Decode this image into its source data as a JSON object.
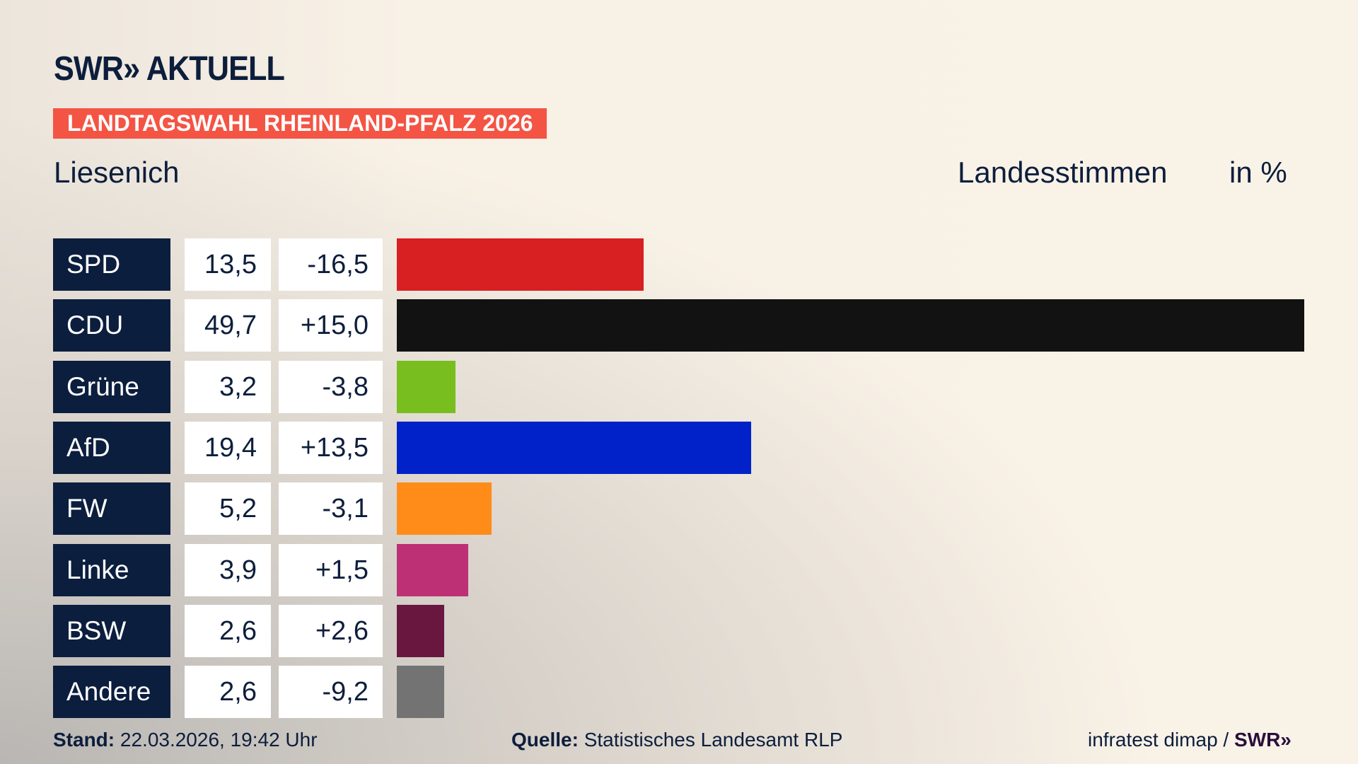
{
  "header": {
    "logo": "SWR» AKTUELL",
    "banner": "LANDTAGSWAHL RHEINLAND-PFALZ 2026",
    "place": "Liesenich",
    "vote_type": "Landesstimmen",
    "unit": "in %"
  },
  "chart_data": {
    "type": "bar",
    "orientation": "horizontal",
    "categories": [
      "SPD",
      "CDU",
      "Grüne",
      "AfD",
      "FW",
      "Linke",
      "BSW",
      "Andere"
    ],
    "values": [
      13.5,
      49.7,
      3.2,
      19.4,
      5.2,
      3.9,
      2.6,
      2.6
    ],
    "value_labels": [
      "13,5",
      "49,7",
      "3,2",
      "19,4",
      "5,2",
      "3,9",
      "2,6",
      "2,6"
    ],
    "diff_labels": [
      "-16,5",
      "+15,0",
      "-3,8",
      "+13,5",
      "-3,1",
      "+1,5",
      "+2,6",
      "-9,2"
    ],
    "colors": [
      "#d81f22",
      "#121212",
      "#78be1e",
      "#0022c8",
      "#ff8c19",
      "#bd3075",
      "#6a1740",
      "#737373"
    ],
    "xlim": [
      0,
      49.7
    ],
    "title": "Landesstimmen",
    "unit": "in %"
  },
  "footer": {
    "stand_label": "Stand:",
    "stand_value": "22.03.2026, 19:42 Uhr",
    "source_label": "Quelle:",
    "source_value": "Statistisches Landesamt RLP",
    "credit": "infratest dimap /",
    "credit_logo": "SWR»"
  }
}
